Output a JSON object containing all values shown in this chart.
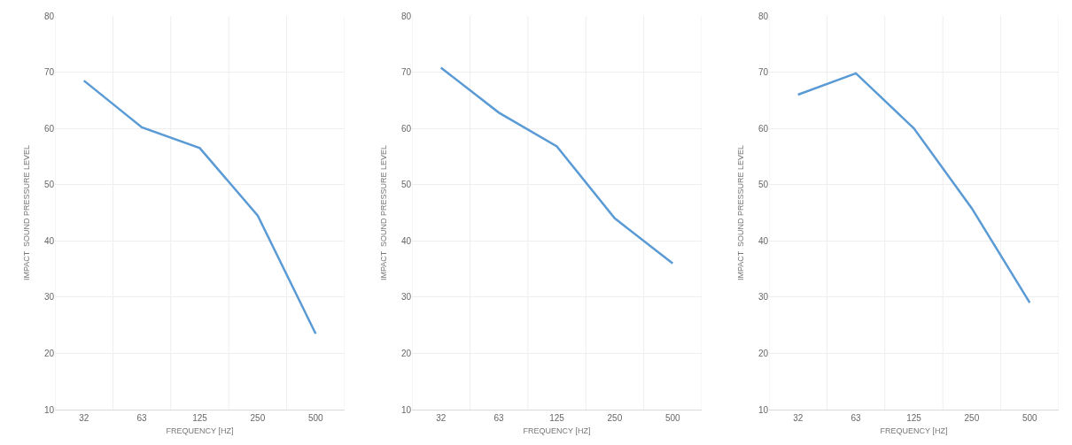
{
  "chart_data": [
    {
      "type": "line",
      "xlabel": "FREQUENCY [HZ]",
      "ylabel": "IMPACT  SOUND PRESSURE LEVEL",
      "categories": [
        "32",
        "63",
        "125",
        "250",
        "500"
      ],
      "values": [
        68.5,
        60.2,
        56.5,
        44.5,
        23.5
      ],
      "color": "#5b9bd5",
      "ylim": [
        10,
        80
      ],
      "yticks": [
        10,
        20,
        30,
        40,
        50,
        60,
        70,
        80
      ],
      "grid": true,
      "marker": "none",
      "line_style": "solid"
    },
    {
      "type": "line",
      "xlabel": "FREQUENCY [HZ]",
      "ylabel": "IMPACT  SOUND PRESSURE LEVEL",
      "categories": [
        "32",
        "63",
        "125",
        "250",
        "500"
      ],
      "values": [
        70.8,
        62.8,
        56.8,
        44,
        36
      ],
      "color": "#5b9bd5",
      "ylim": [
        10,
        80
      ],
      "yticks": [
        10,
        20,
        30,
        40,
        50,
        60,
        70,
        80
      ],
      "grid": true,
      "marker": "none",
      "line_style": "solid"
    },
    {
      "type": "line",
      "xlabel": "FREQUENCY [HZ]",
      "ylabel": "IMPACT  SOUND PRESSURE LEVEL",
      "categories": [
        "32",
        "63",
        "125",
        "250",
        "500"
      ],
      "values": [
        66,
        69.8,
        60,
        45.8,
        29
      ],
      "color": "#5b9bd5",
      "ylim": [
        10,
        80
      ],
      "yticks": [
        10,
        20,
        30,
        40,
        50,
        60,
        70,
        80
      ],
      "grid": true,
      "marker": "none",
      "line_style": "solid"
    }
  ]
}
